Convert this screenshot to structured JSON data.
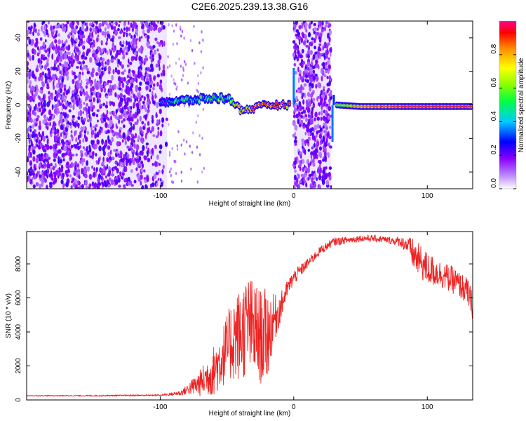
{
  "figure_title": "C2E6.2025.239.13.38.G16",
  "chart_data": [
    {
      "type": "heatmap",
      "title": "C2E6.2025.239.13.38.G16",
      "xlabel": "Height of straight line (km)",
      "ylabel": "Frequency (Hz)",
      "xlim": [
        -200,
        134
      ],
      "ylim": [
        -50,
        50
      ],
      "xticks": [
        -100,
        0,
        100
      ],
      "yticks": [
        -40,
        -20,
        0,
        20,
        40
      ],
      "colorbar": {
        "label": "Normalized spectral amplitude",
        "range": [
          0,
          1
        ],
        "ticks": [
          "0.0",
          "0.2",
          "0.4",
          "0.6",
          "0.8"
        ],
        "colormap": [
          "#ffffff",
          "#8800ff",
          "#0000ff",
          "#00ffff",
          "#00ff00",
          "#ffff00",
          "#ff8800",
          "#ff0000",
          "#ff0088"
        ]
      },
      "regions": [
        {
          "name": "noise",
          "x_range": [
            -200,
            -95
          ],
          "freq_range": [
            -50,
            50
          ],
          "amplitude": 0.1
        },
        {
          "name": "noise",
          "x_range": [
            0,
            28
          ],
          "freq_range": [
            -50,
            50
          ],
          "amplitude": 0.1
        }
      ],
      "signal_trace": [
        {
          "x": -100,
          "freq": 2,
          "amp": 0.3
        },
        {
          "x": -90,
          "freq": 2,
          "amp": 0.4
        },
        {
          "x": -75,
          "freq": 3,
          "amp": 0.45
        },
        {
          "x": -60,
          "freq": 4,
          "amp": 0.5
        },
        {
          "x": -50,
          "freq": 4,
          "amp": 0.45
        },
        {
          "x": -45,
          "freq": 2,
          "amp": 0.55
        },
        {
          "x": -40,
          "freq": -3,
          "amp": 0.7
        },
        {
          "x": -30,
          "freq": -2,
          "amp": 0.8
        },
        {
          "x": -20,
          "freq": 0,
          "amp": 0.85
        },
        {
          "x": -10,
          "freq": 0,
          "amp": 0.85
        },
        {
          "x": -2,
          "freq": 0,
          "amp": 0.8
        },
        {
          "x": 32,
          "freq": 0,
          "amp": 0.6
        },
        {
          "x": 50,
          "freq": -1,
          "amp": 0.8
        },
        {
          "x": 70,
          "freq": -1,
          "amp": 0.85
        },
        {
          "x": 90,
          "freq": -1,
          "amp": 0.9
        },
        {
          "x": 110,
          "freq": -1,
          "amp": 0.9
        },
        {
          "x": 134,
          "freq": -1,
          "amp": 0.9
        }
      ]
    },
    {
      "type": "line",
      "title": "",
      "xlabel": "Height of straight line (km)",
      "ylabel": "SNR (10 * v/v)",
      "xlim": [
        -200,
        134
      ],
      "ylim": [
        0,
        9900
      ],
      "xticks": [
        -100,
        0,
        100
      ],
      "yticks": [
        0,
        2000,
        4000,
        6000,
        8000
      ],
      "series": [
        {
          "name": "SNR",
          "color": "#ee2222",
          "x": [
            -200,
            -150,
            -100,
            -85,
            -80,
            -70,
            -60,
            -50,
            -45,
            -40,
            -35,
            -30,
            -25,
            -20,
            -15,
            -10,
            -5,
            0,
            10,
            20,
            30,
            40,
            50,
            60,
            70,
            80,
            85,
            90,
            100,
            110,
            120,
            130,
            134
          ],
          "y": [
            250,
            250,
            280,
            400,
            600,
            1000,
            1700,
            3000,
            3700,
            3800,
            4400,
            4100,
            3700,
            3800,
            4700,
            5400,
            6500,
            7200,
            8000,
            8800,
            9300,
            9400,
            9500,
            9500,
            9400,
            9300,
            9100,
            8500,
            7700,
            7400,
            7000,
            6400,
            5500
          ],
          "noise": [
            20,
            30,
            40,
            150,
            300,
            800,
            1500,
            2000,
            2600,
            2800,
            3000,
            3000,
            2800,
            2800,
            1500,
            900,
            500,
            450,
            300,
            250,
            250,
            200,
            200,
            200,
            200,
            300,
            500,
            1000,
            1000,
            800,
            800,
            800,
            800
          ]
        }
      ]
    }
  ]
}
